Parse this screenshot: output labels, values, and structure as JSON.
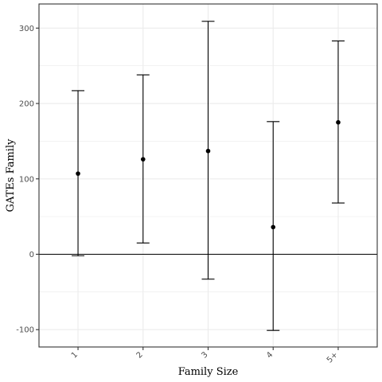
{
  "chart_data": {
    "type": "scatter",
    "title": "",
    "xlabel": "Family Size",
    "ylabel": "GATEs Family",
    "categories": [
      "1",
      "2",
      "3",
      "4",
      "5+"
    ],
    "series": [
      {
        "estimate": [
          107,
          126,
          137,
          36,
          175
        ],
        "lower": [
          -2,
          15,
          -33,
          -101,
          68
        ],
        "upper": [
          217,
          238,
          309,
          176,
          283
        ]
      }
    ],
    "ylim": [
      -123,
      332
    ],
    "yticks": [
      -100,
      0,
      100,
      200,
      300
    ],
    "reference_line": 0,
    "grid": true,
    "legend": "none",
    "colors": {
      "points": "#000000",
      "grid": "#ebebeb",
      "panel_border": "#333333"
    }
  }
}
